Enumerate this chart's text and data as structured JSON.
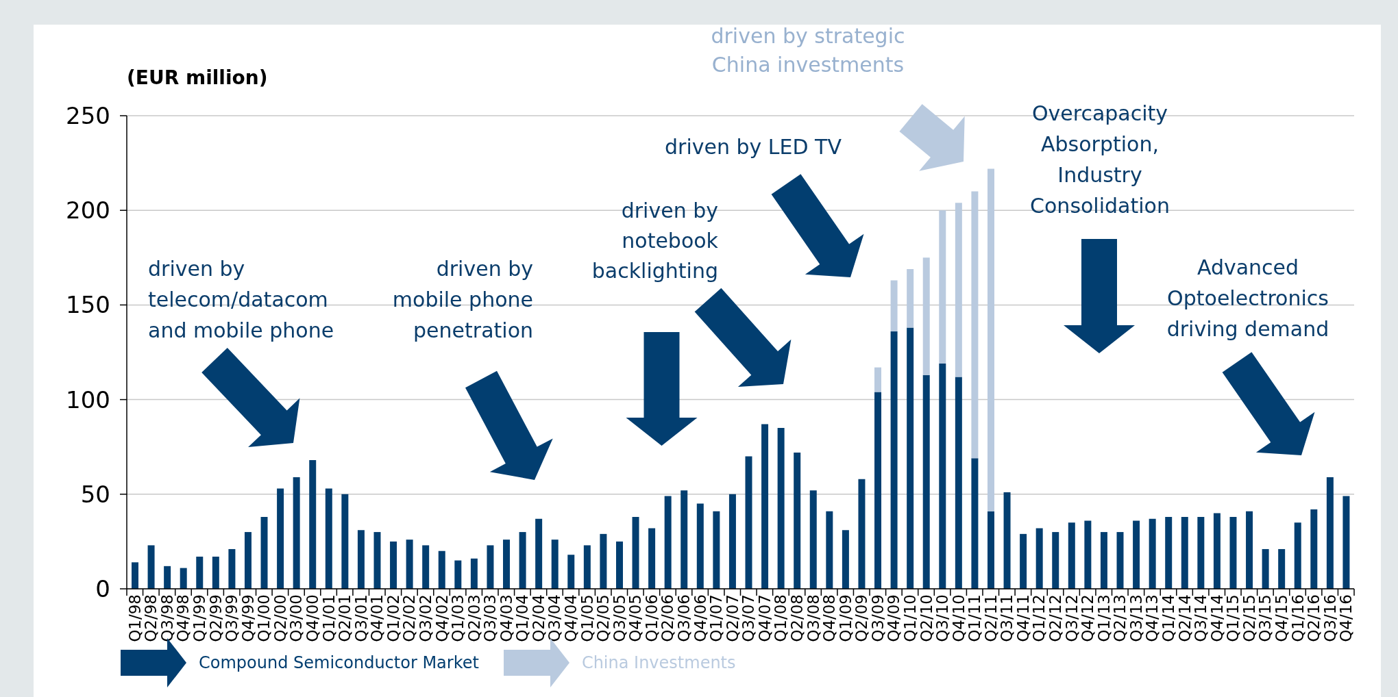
{
  "chart_data": {
    "type": "bar",
    "stacked": true,
    "ylabel": "(EUR million)",
    "categories": [
      "Q1/98",
      "Q2/98",
      "Q3/98",
      "Q4/98",
      "Q1/99",
      "Q2/99",
      "Q3/99",
      "Q4/99",
      "Q1/00",
      "Q2/00",
      "Q3/00",
      "Q4/00",
      "Q1/01",
      "Q2/01",
      "Q3/01",
      "Q4/01",
      "Q1/02",
      "Q2/02",
      "Q3/02",
      "Q4/02",
      "Q1/03",
      "Q2/03",
      "Q3/03",
      "Q4/03",
      "Q1/04",
      "Q2/04",
      "Q3/04",
      "Q4/04",
      "Q1/05",
      "Q2/05",
      "Q3/05",
      "Q4/05",
      "Q1/06",
      "Q2/06",
      "Q3/06",
      "Q4/06",
      "Q1/07",
      "Q2/07",
      "Q3/07",
      "Q4/07",
      "Q1/08",
      "Q2/08",
      "Q3/08",
      "Q4/08",
      "Q1/09",
      "Q2/09",
      "Q3/09",
      "Q4/09",
      "Q1/10",
      "Q2/10",
      "Q3/10",
      "Q4/10",
      "Q1/11",
      "Q2/11",
      "Q3/11",
      "Q4/11",
      "Q1/12",
      "Q2/12",
      "Q3/12",
      "Q4/12",
      "Q1/13",
      "Q2/13",
      "Q3/13",
      "Q4/13",
      "Q1/14",
      "Q2/14",
      "Q3/14",
      "Q4/14",
      "Q1/15",
      "Q2/15",
      "Q3/15",
      "Q4/15",
      "Q1/16",
      "Q2/16",
      "Q3/16",
      "Q4/16"
    ],
    "series": [
      {
        "name": "Compound Semiconductor Market",
        "color": "#023e70",
        "values": [
          14,
          23,
          12,
          11,
          17,
          17,
          21,
          30,
          38,
          53,
          59,
          68,
          53,
          50,
          31,
          30,
          25,
          26,
          23,
          20,
          15,
          16,
          23,
          26,
          30,
          37,
          26,
          18,
          23,
          29,
          25,
          38,
          32,
          49,
          52,
          45,
          41,
          50,
          70,
          87,
          85,
          72,
          52,
          41,
          31,
          58,
          104,
          136,
          138,
          113,
          119,
          112,
          69,
          41,
          51,
          29,
          32,
          30,
          35,
          36,
          30,
          30,
          36,
          37,
          38,
          38,
          38,
          40,
          38,
          41,
          21,
          21,
          35,
          42,
          59,
          49
        ]
      },
      {
        "name": "China Investments",
        "color": "#b9cadf",
        "values": [
          null,
          null,
          null,
          null,
          null,
          null,
          null,
          null,
          null,
          null,
          null,
          null,
          null,
          null,
          null,
          null,
          null,
          null,
          null,
          null,
          null,
          null,
          null,
          null,
          null,
          null,
          null,
          null,
          null,
          null,
          null,
          null,
          null,
          null,
          null,
          null,
          null,
          null,
          null,
          null,
          null,
          null,
          null,
          null,
          null,
          null,
          13,
          27,
          31,
          62,
          81,
          92,
          141,
          181,
          null,
          null,
          null,
          null,
          null,
          null,
          null,
          null,
          null,
          null,
          null,
          null,
          null,
          null,
          null,
          null,
          null,
          null,
          null,
          null,
          null,
          null
        ]
      }
    ],
    "ylim": [
      0,
      250
    ],
    "yticks": [
      0,
      50,
      100,
      150,
      200,
      250
    ],
    "grid": "y",
    "legend": "bottom left",
    "annotations": [
      "driven by\ntelecom/datacom\nand mobile phone",
      "driven by\nmobile phone\npenetration",
      "driven by\nnotebook\nbacklighting",
      "driven by LED TV",
      "driven by strategic\nChina investments",
      "Overcapacity\nAbsorption,\nIndustry\nConsolidation",
      "Advanced\nOptoelectronics\ndriving demand"
    ]
  }
}
